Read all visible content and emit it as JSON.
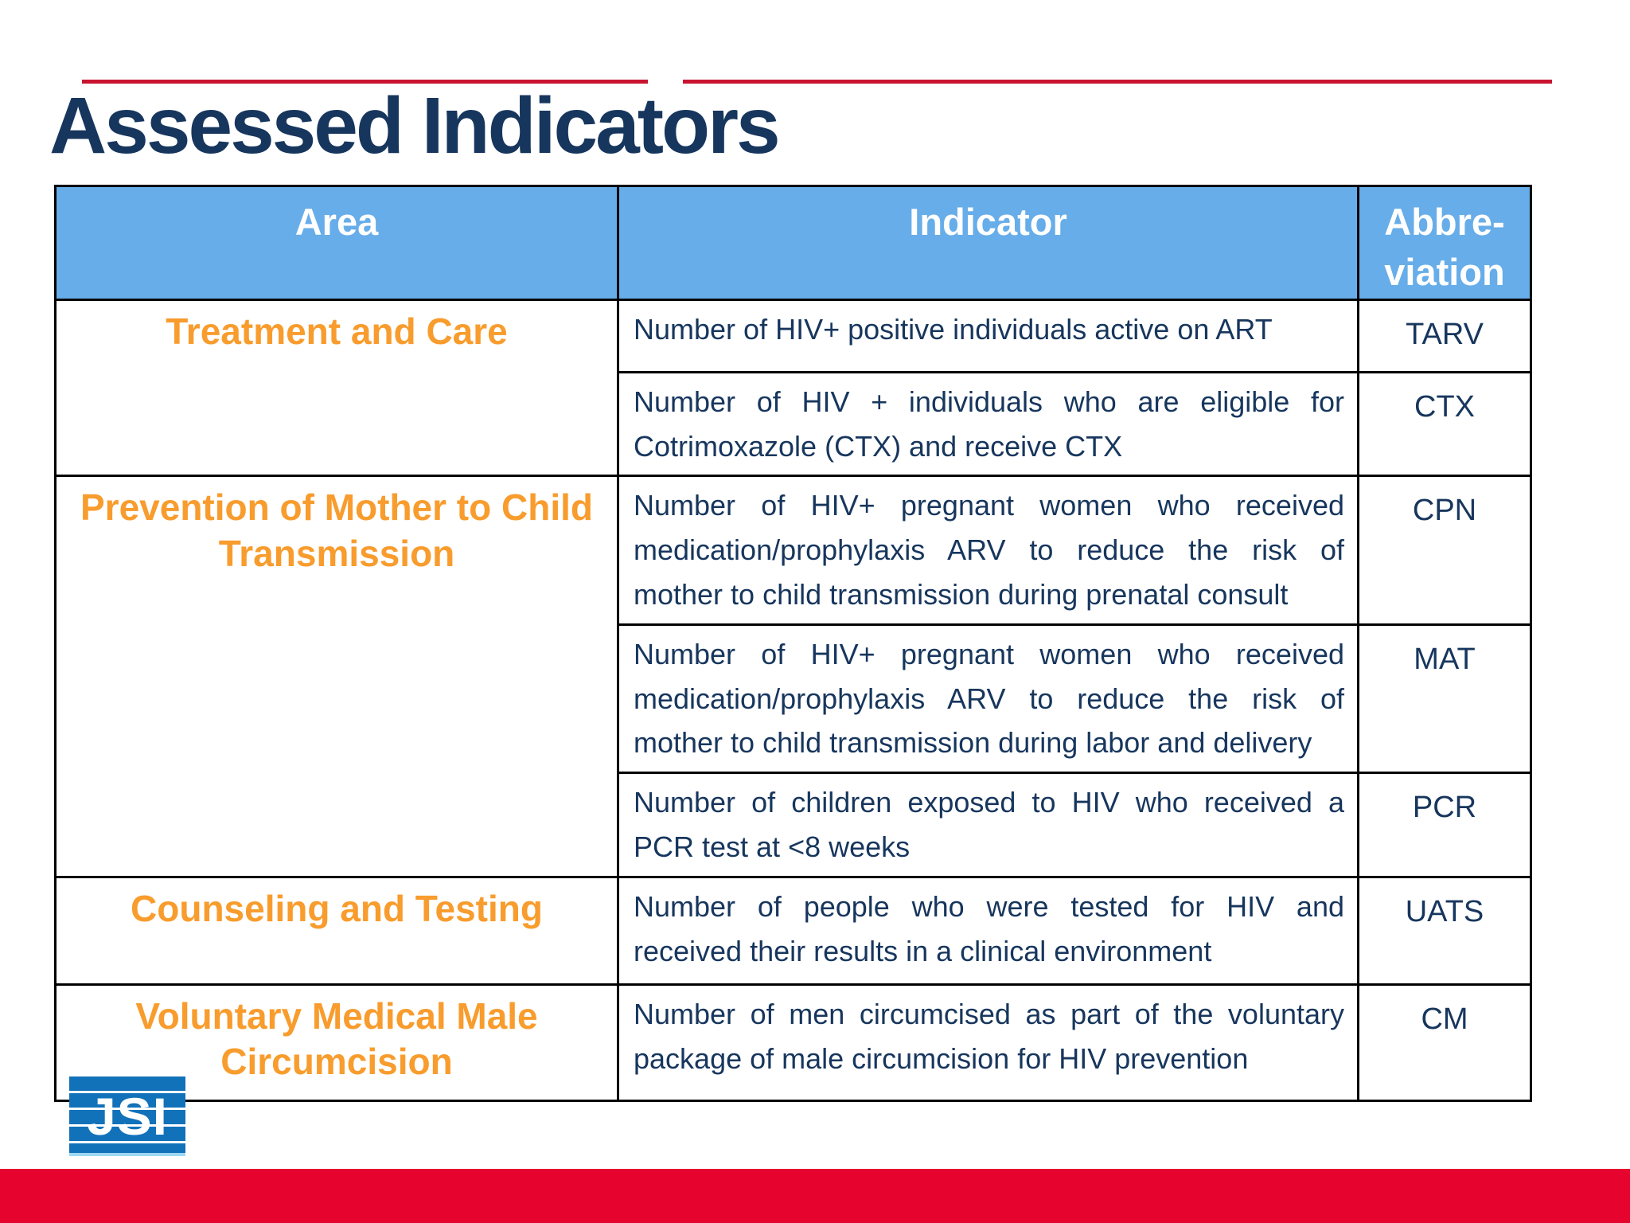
{
  "title": "Assessed Indicators",
  "colors": {
    "title_navy": "#17365d",
    "body_navy": "#17365d",
    "area_orange": "#f89c2d",
    "header_blue": "#67ade9",
    "rule_red": "#c81430",
    "bottom_bar_red": "#e6032e",
    "logo_blue": "#1272b9",
    "table_border": "#000000"
  },
  "table": {
    "header": {
      "area": "Area",
      "indicator": "Indicator",
      "abbreviation_line1": "Abbre-",
      "abbreviation_line2": "viation"
    },
    "groups": [
      {
        "area": "Treatment and Care",
        "rows": [
          {
            "indicator": "Number of HIV+ positive individuals active on ART",
            "abbreviation": "TARV"
          },
          {
            "indicator": "Number of HIV + individuals who are eligible for Cotrimoxazole (CTX) and receive CTX",
            "abbreviation": "CTX"
          }
        ]
      },
      {
        "area": "Prevention of Mother to Child Transmission",
        "rows": [
          {
            "indicator": "Number of HIV+ pregnant women who received medication/prophylaxis ARV to reduce the risk of mother to child transmission during prenatal consult",
            "abbreviation": "CPN"
          },
          {
            "indicator": "Number of HIV+ pregnant women who received medication/prophylaxis ARV to reduce the risk of mother to child transmission during labor and delivery",
            "abbreviation": "MAT"
          },
          {
            "indicator": "Number of children exposed to HIV who received a PCR test at <8 weeks",
            "abbreviation": "PCR"
          }
        ]
      },
      {
        "area": "Counseling and Testing",
        "rows": [
          {
            "indicator": "Number of people who were tested for HIV and received their results in a clinical environment",
            "abbreviation": "UATS"
          }
        ]
      },
      {
        "area": "Voluntary Medical Male Circumcision",
        "rows": [
          {
            "indicator": "Number of men circumcised as part of the voluntary package of male circumcision for HIV prevention",
            "abbreviation": "CM"
          }
        ]
      }
    ]
  },
  "logo": {
    "text": "JSI"
  }
}
